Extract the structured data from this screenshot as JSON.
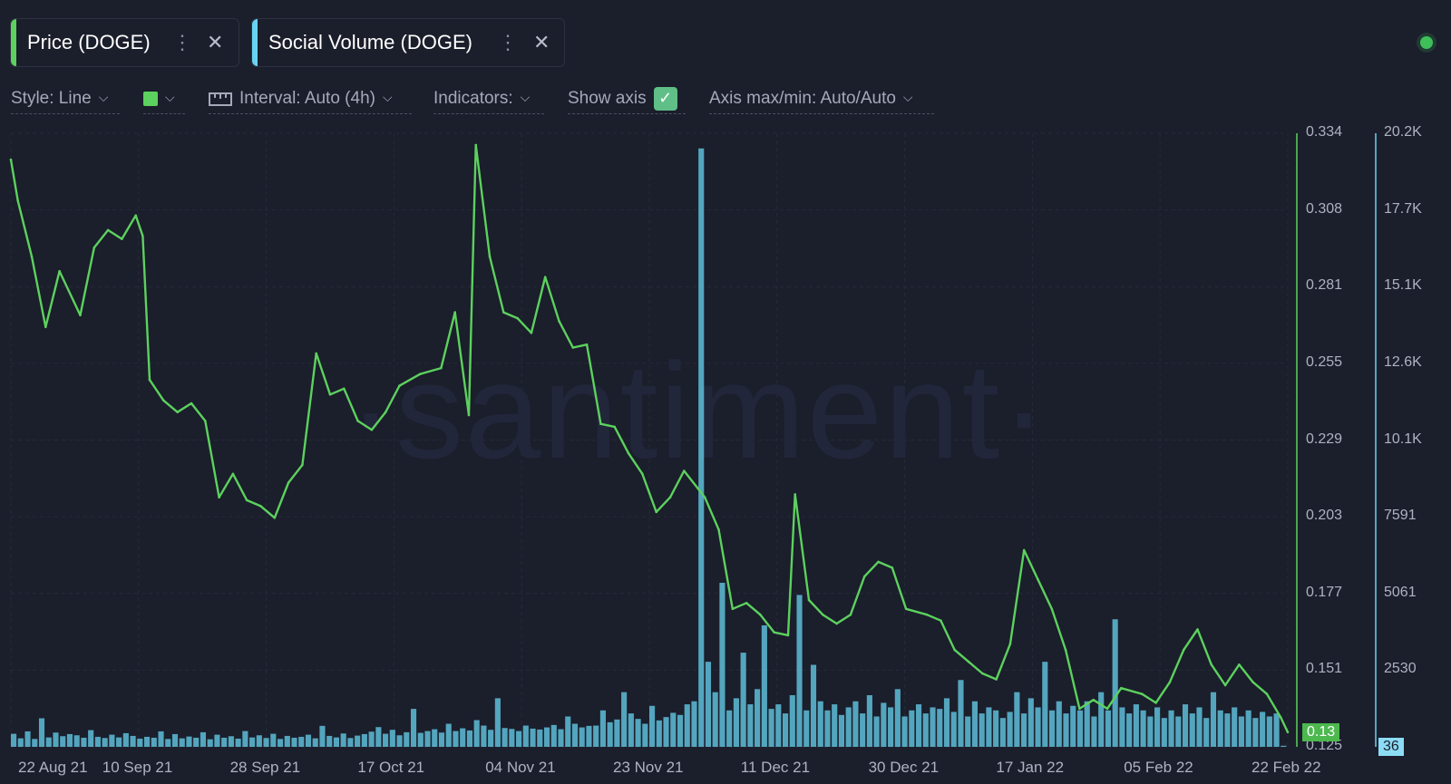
{
  "tabs": [
    {
      "label": "Price (DOGE)",
      "color": "#5cd15e"
    },
    {
      "label": "Social Volume (DOGE)",
      "color": "#68d3f0"
    }
  ],
  "controls": {
    "style": "Style: Line",
    "interval": "Interval: Auto (4h)",
    "indicators": "Indicators:",
    "show_axis": "Show axis",
    "axis_maxmin": "Axis max/min: Auto/Auto"
  },
  "watermark": "·santiment·",
  "chart_data": {
    "type": "line",
    "x_tick_labels": [
      "22 Aug 21",
      "10 Sep 21",
      "28 Sep 21",
      "17 Oct 21",
      "04 Nov 21",
      "23 Nov 21",
      "11 Dec 21",
      "30 Dec 21",
      "17 Jan 22",
      "05 Feb 22",
      "22 Feb 22"
    ],
    "x_range": [
      "2021-08-22",
      "2022-02-22"
    ],
    "grid": true,
    "series": [
      {
        "name": "Price (DOGE)",
        "type": "line",
        "color": "#5cd15e",
        "axis": "left",
        "ylim": [
          0.125,
          0.334
        ],
        "y_ticks": [
          "0.334",
          "0.308",
          "0.281",
          "0.255",
          "0.229",
          "0.203",
          "0.177",
          "0.151",
          "0.125"
        ],
        "last_value_label": "0.13",
        "points": [
          [
            "2021-08-22",
            0.325
          ],
          [
            "2021-08-23",
            0.311
          ],
          [
            "2021-08-25",
            0.292
          ],
          [
            "2021-08-27",
            0.268
          ],
          [
            "2021-08-29",
            0.287
          ],
          [
            "2021-09-01",
            0.272
          ],
          [
            "2021-09-03",
            0.295
          ],
          [
            "2021-09-05",
            0.301
          ],
          [
            "2021-09-07",
            0.298
          ],
          [
            "2021-09-09",
            0.306
          ],
          [
            "2021-09-10",
            0.299
          ],
          [
            "2021-09-11",
            0.25
          ],
          [
            "2021-09-13",
            0.243
          ],
          [
            "2021-09-15",
            0.239
          ],
          [
            "2021-09-17",
            0.242
          ],
          [
            "2021-09-19",
            0.236
          ],
          [
            "2021-09-21",
            0.21
          ],
          [
            "2021-09-23",
            0.218
          ],
          [
            "2021-09-25",
            0.209
          ],
          [
            "2021-09-27",
            0.207
          ],
          [
            "2021-09-29",
            0.203
          ],
          [
            "2021-10-01",
            0.215
          ],
          [
            "2021-10-03",
            0.221
          ],
          [
            "2021-10-05",
            0.259
          ],
          [
            "2021-10-07",
            0.245
          ],
          [
            "2021-10-09",
            0.247
          ],
          [
            "2021-10-11",
            0.236
          ],
          [
            "2021-10-13",
            0.233
          ],
          [
            "2021-10-15",
            0.239
          ],
          [
            "2021-10-17",
            0.248
          ],
          [
            "2021-10-20",
            0.252
          ],
          [
            "2021-10-23",
            0.254
          ],
          [
            "2021-10-25",
            0.273
          ],
          [
            "2021-10-27",
            0.238
          ],
          [
            "2021-10-28",
            0.33
          ],
          [
            "2021-10-30",
            0.292
          ],
          [
            "2021-11-01",
            0.273
          ],
          [
            "2021-11-03",
            0.271
          ],
          [
            "2021-11-05",
            0.266
          ],
          [
            "2021-11-07",
            0.285
          ],
          [
            "2021-11-09",
            0.27
          ],
          [
            "2021-11-11",
            0.261
          ],
          [
            "2021-11-13",
            0.262
          ],
          [
            "2021-11-15",
            0.235
          ],
          [
            "2021-11-17",
            0.234
          ],
          [
            "2021-11-19",
            0.225
          ],
          [
            "2021-11-21",
            0.218
          ],
          [
            "2021-11-23",
            0.205
          ],
          [
            "2021-11-25",
            0.21
          ],
          [
            "2021-11-27",
            0.219
          ],
          [
            "2021-11-29",
            0.213
          ],
          [
            "2021-11-30",
            0.21
          ],
          [
            "2021-12-02",
            0.199
          ],
          [
            "2021-12-04",
            0.172
          ],
          [
            "2021-12-06",
            0.174
          ],
          [
            "2021-12-08",
            0.17
          ],
          [
            "2021-12-10",
            0.164
          ],
          [
            "2021-12-12",
            0.163
          ],
          [
            "2021-12-13",
            0.211
          ],
          [
            "2021-12-15",
            0.175
          ],
          [
            "2021-12-17",
            0.17
          ],
          [
            "2021-12-19",
            0.167
          ],
          [
            "2021-12-21",
            0.17
          ],
          [
            "2021-12-23",
            0.183
          ],
          [
            "2021-12-25",
            0.188
          ],
          [
            "2021-12-27",
            0.186
          ],
          [
            "2021-12-29",
            0.172
          ],
          [
            "2022-01-01",
            0.17
          ],
          [
            "2022-01-03",
            0.168
          ],
          [
            "2022-01-05",
            0.158
          ],
          [
            "2022-01-07",
            0.154
          ],
          [
            "2022-01-09",
            0.15
          ],
          [
            "2022-01-11",
            0.148
          ],
          [
            "2022-01-13",
            0.16
          ],
          [
            "2022-01-15",
            0.192
          ],
          [
            "2022-01-17",
            0.182
          ],
          [
            "2022-01-19",
            0.172
          ],
          [
            "2022-01-21",
            0.158
          ],
          [
            "2022-01-23",
            0.138
          ],
          [
            "2022-01-25",
            0.141
          ],
          [
            "2022-01-27",
            0.138
          ],
          [
            "2022-01-29",
            0.145
          ],
          [
            "2022-02-01",
            0.143
          ],
          [
            "2022-02-03",
            0.14
          ],
          [
            "2022-02-05",
            0.147
          ],
          [
            "2022-02-07",
            0.158
          ],
          [
            "2022-02-09",
            0.165
          ],
          [
            "2022-02-11",
            0.153
          ],
          [
            "2022-02-13",
            0.146
          ],
          [
            "2022-02-15",
            0.153
          ],
          [
            "2022-02-17",
            0.147
          ],
          [
            "2022-02-19",
            0.143
          ],
          [
            "2022-02-21",
            0.135
          ],
          [
            "2022-02-22",
            0.13
          ]
        ]
      },
      {
        "name": "Social Volume (DOGE)",
        "type": "bar",
        "color": "#68d3f0",
        "axis": "right",
        "ylim": [
          0,
          20200
        ],
        "y_ticks": [
          "20.2K",
          "17.7K",
          "15.1K",
          "12.6K",
          "10.1K",
          "7591",
          "5061",
          "2530"
        ],
        "last_value_label": "36",
        "values": [
          430,
          280,
          510,
          260,
          940,
          310,
          470,
          350,
          420,
          380,
          300,
          550,
          330,
          290,
          400,
          310,
          450,
          360,
          270,
          330,
          300,
          510,
          260,
          420,
          280,
          340,
          300,
          480,
          250,
          400,
          300,
          350,
          270,
          520,
          310,
          380,
          290,
          430,
          260,
          360,
          300,
          330,
          400,
          280,
          690,
          360,
          310,
          440,
          290,
          370,
          420,
          500,
          650,
          430,
          560,
          380,
          480,
          1250,
          460,
          520,
          580,
          470,
          760,
          520,
          610,
          540,
          880,
          700,
          560,
          1600,
          620,
          590,
          520,
          700,
          600,
          570,
          640,
          720,
          580,
          1000,
          760,
          640,
          690,
          700,
          1200,
          810,
          900,
          1800,
          1100,
          920,
          760,
          1350,
          870,
          980,
          1120,
          1050,
          1400,
          1500,
          19700,
          2800,
          1800,
          5400,
          1200,
          1600,
          3100,
          1400,
          1900,
          4000,
          1250,
          1400,
          1100,
          1700,
          5000,
          1200,
          2700,
          1500,
          1200,
          1400,
          1050,
          1300,
          1500,
          1100,
          1700,
          1000,
          1450,
          1300,
          1900,
          1000,
          1200,
          1400,
          1100,
          1300,
          1250,
          1600,
          1150,
          2200,
          1000,
          1500,
          1100,
          1300,
          1200,
          950,
          1150,
          1800,
          1100,
          1600,
          1300,
          2800,
          1200,
          1500,
          1100,
          1350,
          1200,
          1500,
          1000,
          1800,
          1200,
          4200,
          1300,
          1100,
          1400,
          1200,
          1000,
          1300,
          950,
          1200,
          1000,
          1400,
          1100,
          1300,
          950,
          1800,
          1200,
          1100,
          1300,
          1000,
          1200,
          950,
          1150,
          1000,
          1100,
          36
        ]
      }
    ]
  }
}
